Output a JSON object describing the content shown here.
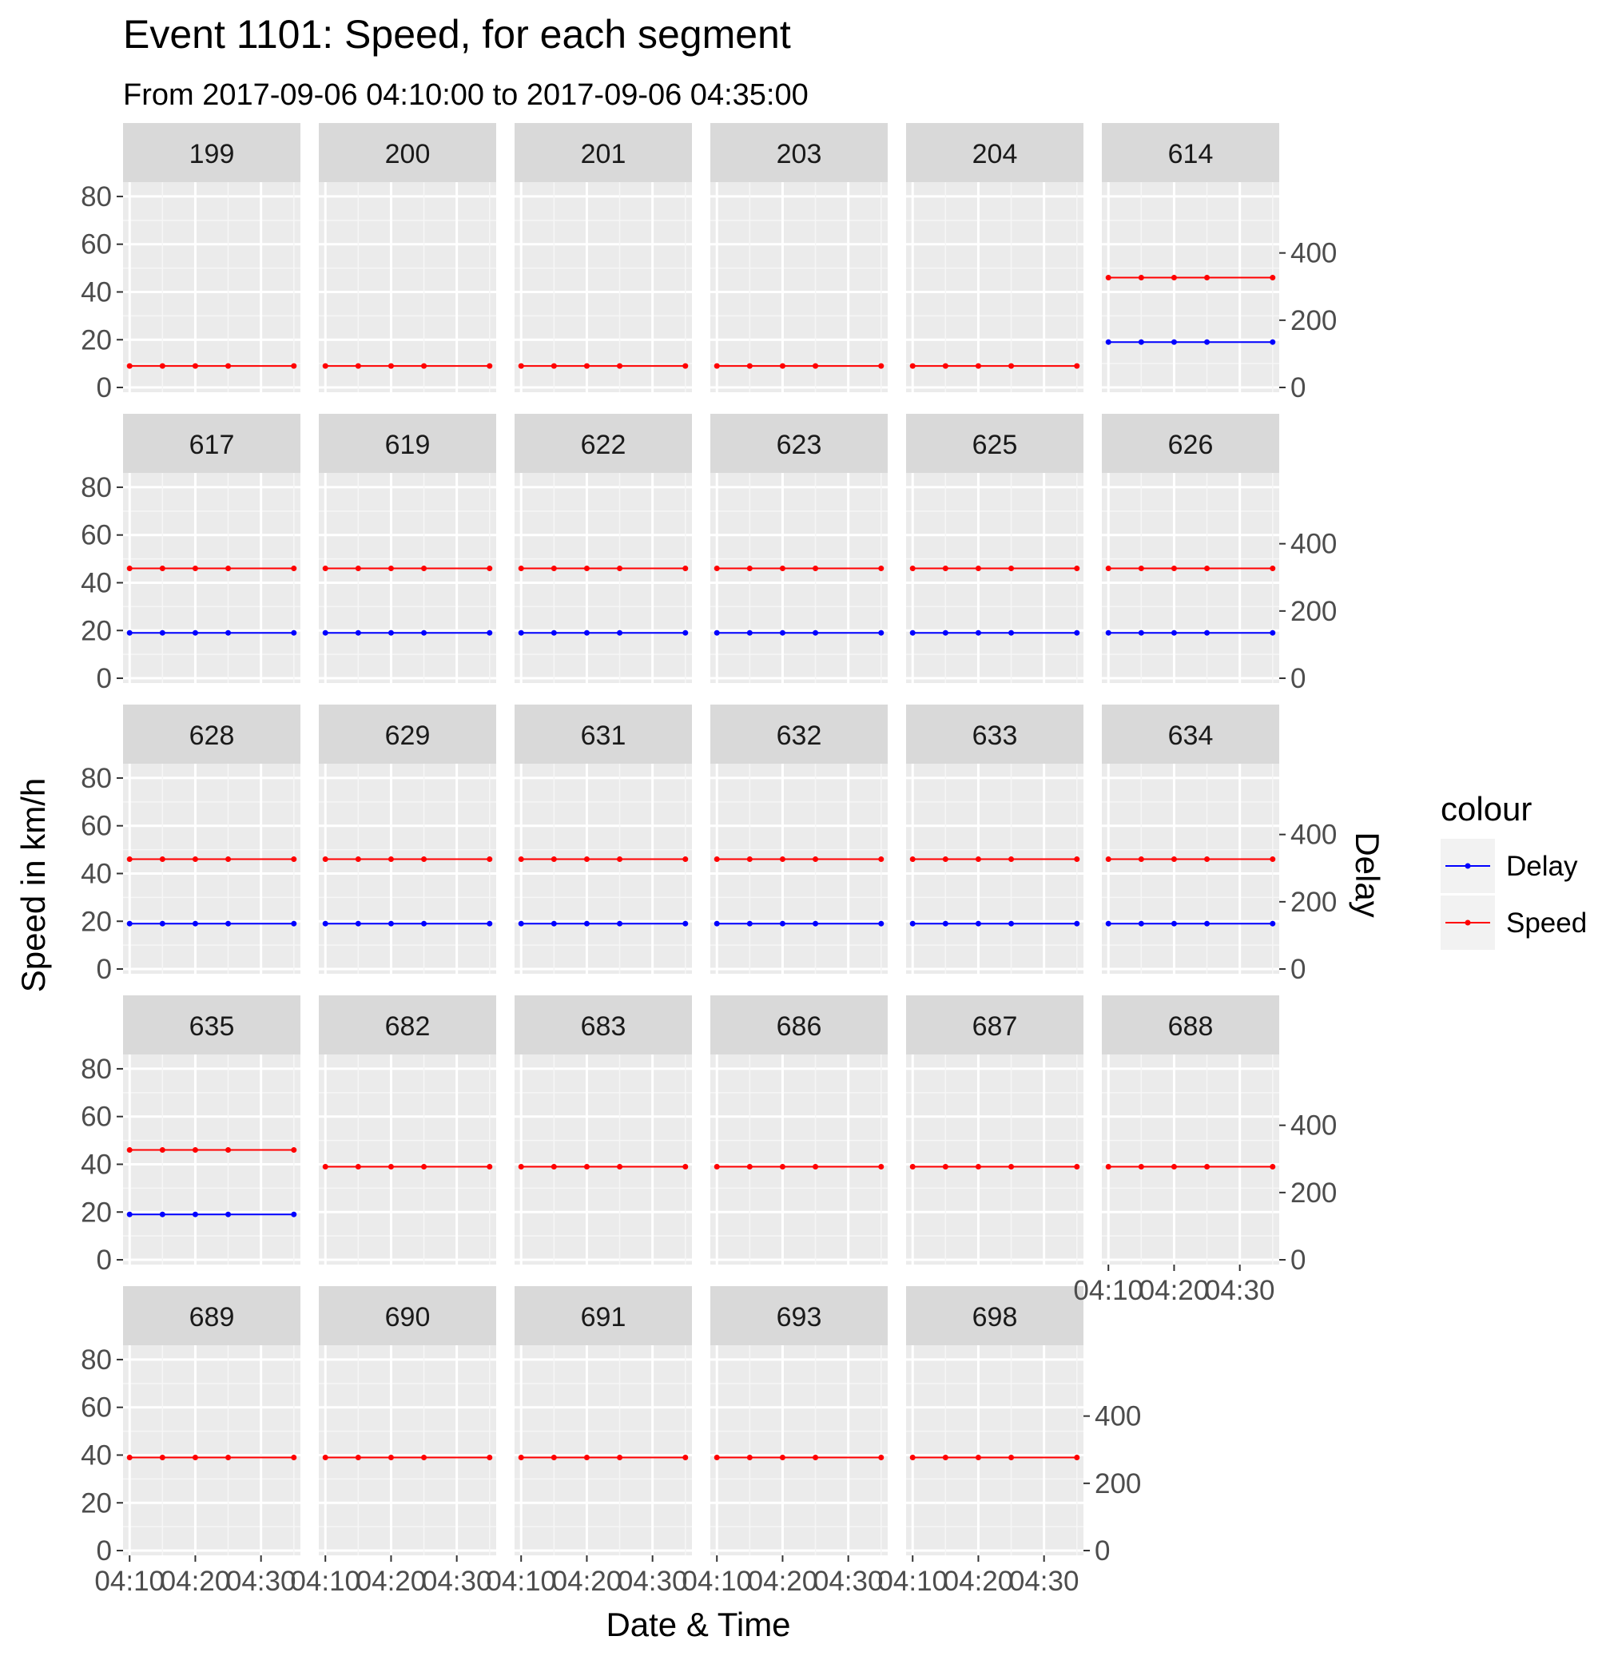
{
  "chart_data": {
    "type": "line",
    "title": "Event 1101: Speed, for each segment",
    "subtitle": "From 2017-09-06 04:10:00 to 2017-09-06 04:35:00",
    "xlabel": "Date & Time",
    "ylabel": "Speed in km/h",
    "y2label": "Delay",
    "x": [
      "04:10",
      "04:15",
      "04:20",
      "04:25",
      "04:35"
    ],
    "x_tick_labels": [
      "04:10",
      "04:20",
      "04:30"
    ],
    "xlim": [
      "04:09",
      "04:36"
    ],
    "ylim": [
      -2,
      86
    ],
    "y_ticks": [
      0,
      20,
      40,
      60,
      80
    ],
    "y2_ticks": [
      0,
      200,
      400
    ],
    "y2_scale_factor": 7.1,
    "grid": true,
    "legend": {
      "title": "colour",
      "position": "right",
      "entries": [
        {
          "name": "Delay",
          "color": "#0000ff"
        },
        {
          "name": "Speed",
          "color": "#ff0000"
        }
      ]
    },
    "colors": {
      "Delay": "#0000ff",
      "Speed": "#ff0000"
    },
    "panels": [
      {
        "segment": "199",
        "speed": 9,
        "delay": null
      },
      {
        "segment": "200",
        "speed": 9,
        "delay": null
      },
      {
        "segment": "201",
        "speed": 9,
        "delay": null
      },
      {
        "segment": "203",
        "speed": 9,
        "delay": null
      },
      {
        "segment": "204",
        "speed": 9,
        "delay": null
      },
      {
        "segment": "614",
        "speed": 46,
        "delay": 135
      },
      {
        "segment": "617",
        "speed": 46,
        "delay": 135
      },
      {
        "segment": "619",
        "speed": 46,
        "delay": 135
      },
      {
        "segment": "622",
        "speed": 46,
        "delay": 135
      },
      {
        "segment": "623",
        "speed": 46,
        "delay": 135
      },
      {
        "segment": "625",
        "speed": 46,
        "delay": 135
      },
      {
        "segment": "626",
        "speed": 46,
        "delay": 135
      },
      {
        "segment": "628",
        "speed": 46,
        "delay": 135
      },
      {
        "segment": "629",
        "speed": 46,
        "delay": 135
      },
      {
        "segment": "631",
        "speed": 46,
        "delay": 135
      },
      {
        "segment": "632",
        "speed": 46,
        "delay": 135
      },
      {
        "segment": "633",
        "speed": 46,
        "delay": 135
      },
      {
        "segment": "634",
        "speed": 46,
        "delay": 135
      },
      {
        "segment": "635",
        "speed": 46,
        "delay": 135
      },
      {
        "segment": "682",
        "speed": 39,
        "delay": null
      },
      {
        "segment": "683",
        "speed": 39,
        "delay": null
      },
      {
        "segment": "686",
        "speed": 39,
        "delay": null
      },
      {
        "segment": "687",
        "speed": 39,
        "delay": null
      },
      {
        "segment": "688",
        "speed": 39,
        "delay": null
      },
      {
        "segment": "689",
        "speed": 39,
        "delay": null
      },
      {
        "segment": "690",
        "speed": 39,
        "delay": null
      },
      {
        "segment": "691",
        "speed": 39,
        "delay": null
      },
      {
        "segment": "693",
        "speed": 39,
        "delay": null
      },
      {
        "segment": "698",
        "speed": 39,
        "delay": null
      }
    ]
  }
}
